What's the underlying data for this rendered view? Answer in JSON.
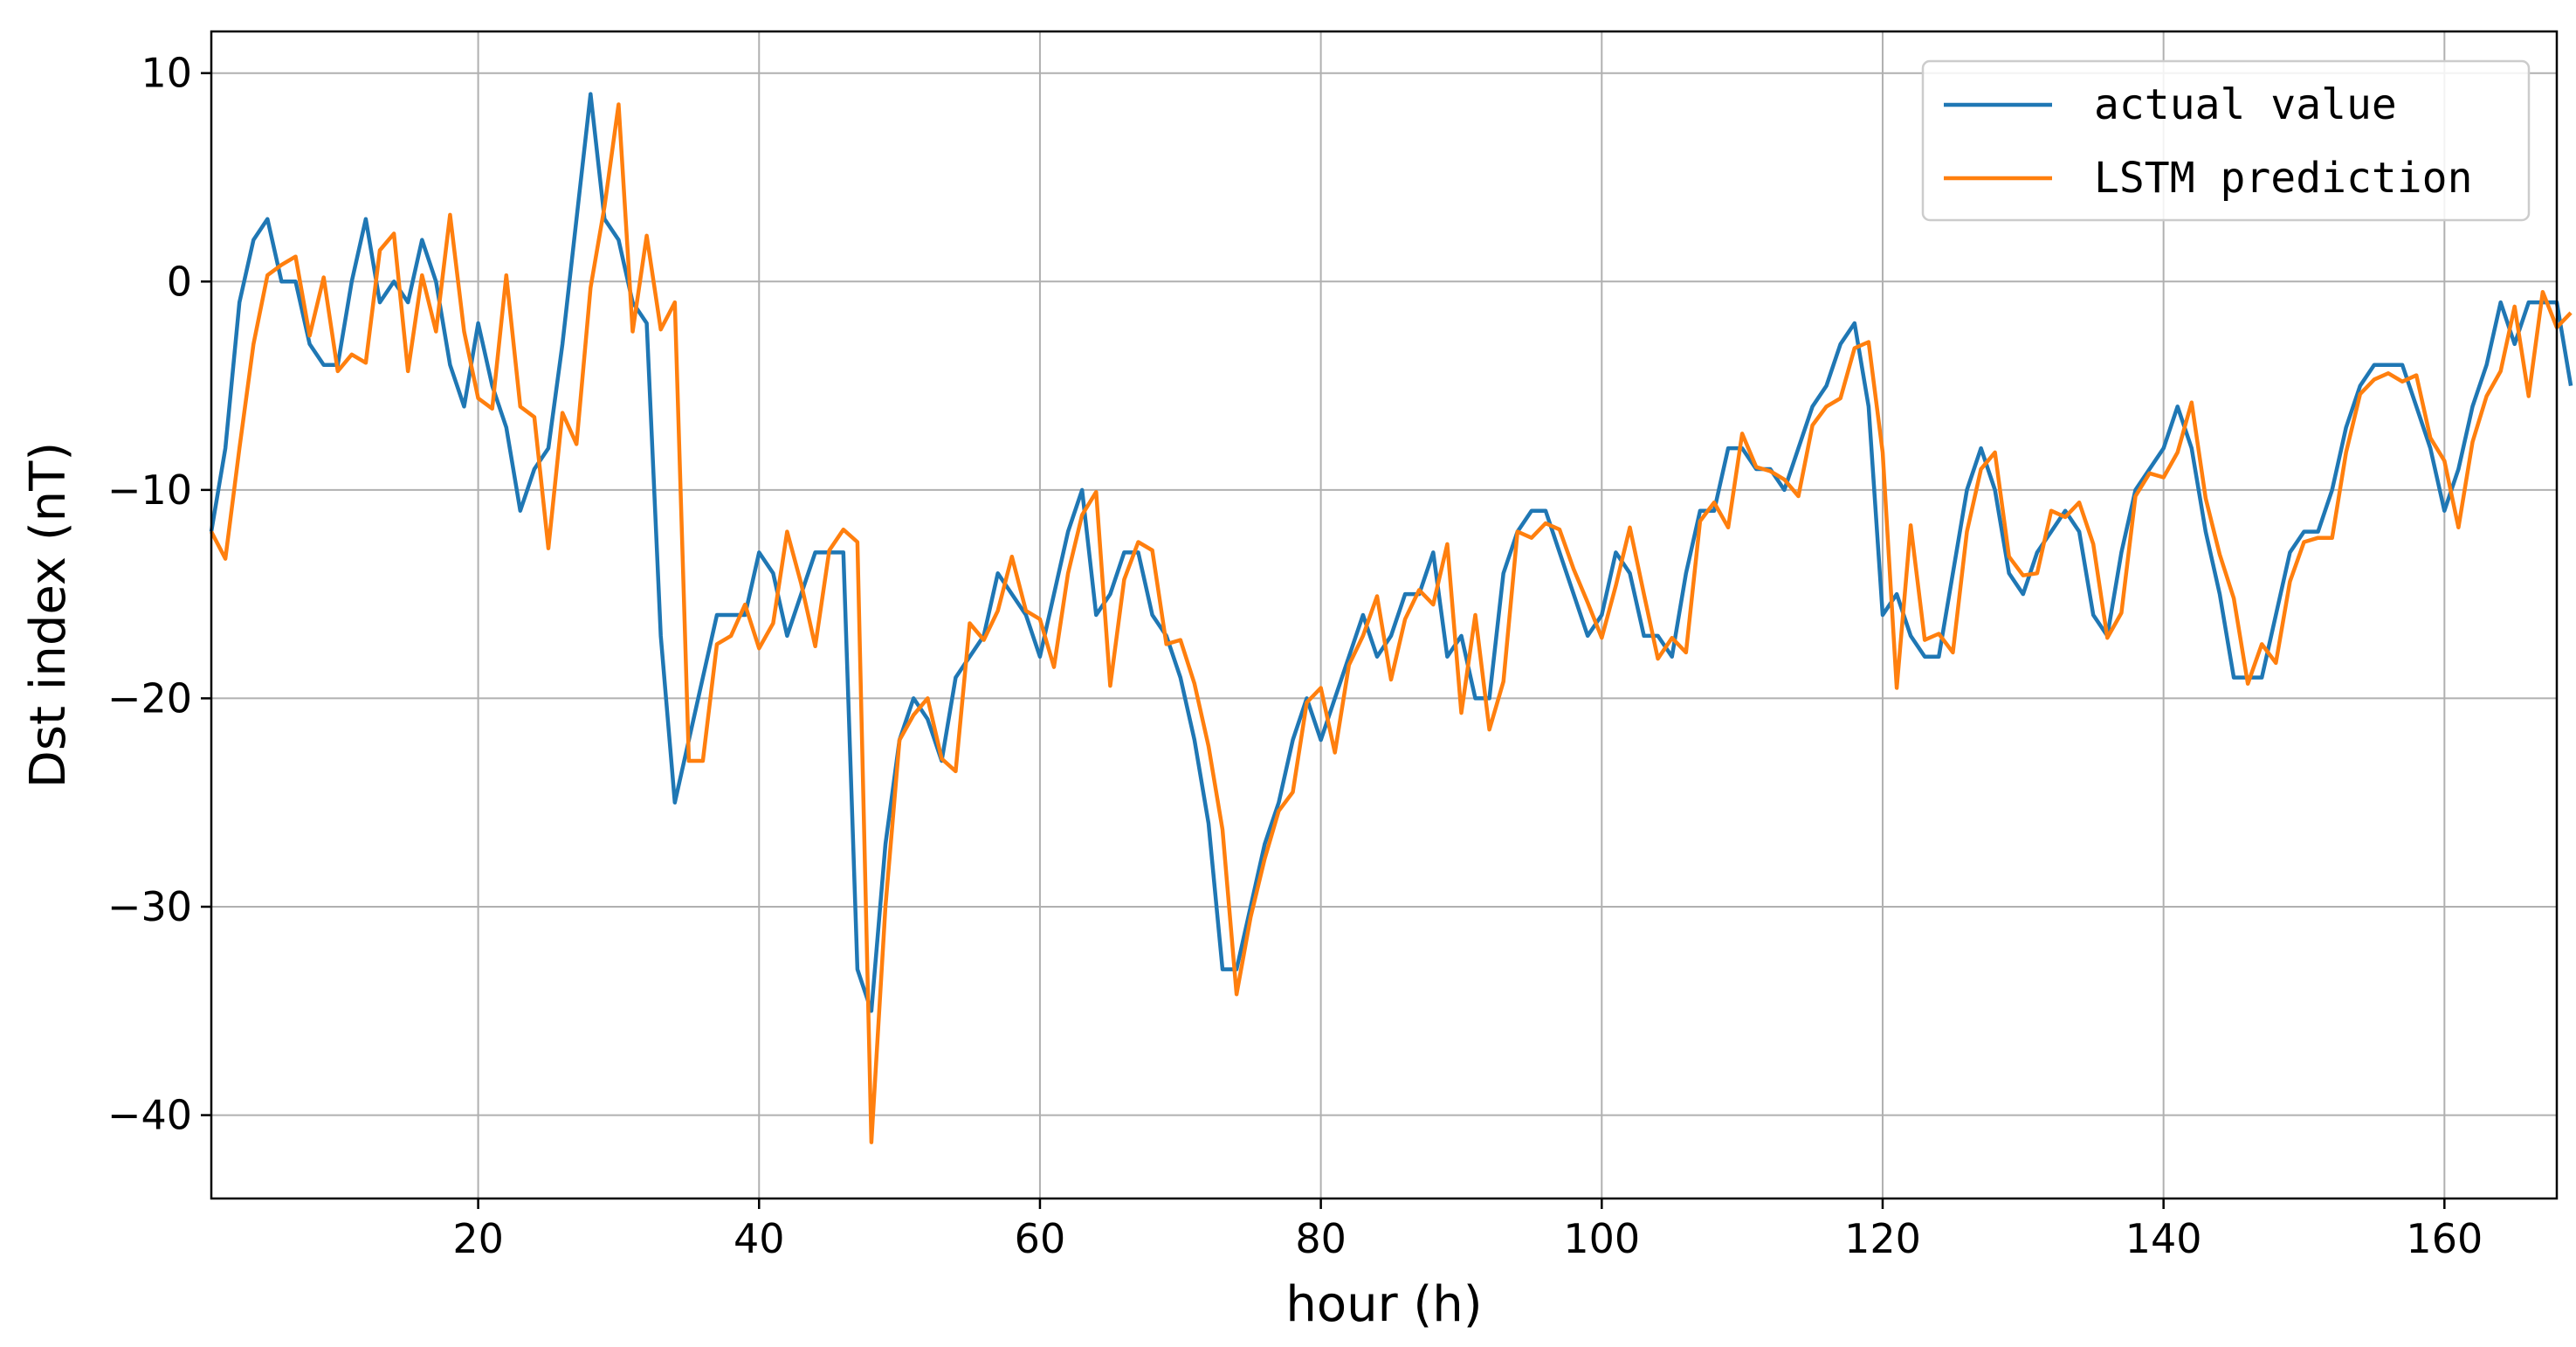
{
  "chart_data": {
    "type": "line",
    "xlabel": "hour (h)",
    "ylabel": "Dst index (nT)",
    "xlim": [
      1,
      168
    ],
    "ylim": [
      -44,
      12
    ],
    "x_ticks": [
      20,
      40,
      60,
      80,
      100,
      120,
      140,
      160
    ],
    "y_ticks": [
      10,
      0,
      -10,
      -20,
      -30,
      -40
    ],
    "y_tick_labels": [
      "10",
      "0",
      "−10",
      "−20",
      "−30",
      "−40"
    ],
    "grid": true,
    "legend_position": "top-right",
    "x_start": 1,
    "series": [
      {
        "name": "actual value",
        "color": "#1f77b4",
        "values": [
          -12,
          -8,
          -1,
          2,
          3,
          0,
          0,
          -3,
          -4,
          -4,
          0,
          3,
          -1,
          0,
          -1,
          2,
          0,
          -4,
          -6,
          -2,
          -5,
          -7,
          -11,
          -9,
          -8,
          -3,
          3,
          9,
          3,
          2,
          -1,
          -2,
          -17,
          -25,
          -22,
          -19,
          -16,
          -16,
          -16,
          -13,
          -14,
          -17,
          -15,
          -13,
          -13,
          -13,
          -33,
          -35,
          -27,
          -22,
          -20,
          -21,
          -23,
          -19,
          -18,
          -17,
          -14,
          -15,
          -16,
          -18,
          -15,
          -12,
          -10,
          -16,
          -15,
          -13,
          -13,
          -16,
          -17,
          -19,
          -22,
          -26,
          -33,
          -33,
          -30,
          -27,
          -25,
          -22,
          -20,
          -22,
          -20,
          -18,
          -16,
          -18,
          -17,
          -15,
          -15,
          -13,
          -18,
          -17,
          -20,
          -20,
          -14,
          -12,
          -11,
          -11,
          -13,
          -15,
          -17,
          -16,
          -13,
          -14,
          -17,
          -17,
          -18,
          -14,
          -11,
          -11,
          -8,
          -8,
          -9,
          -9,
          -10,
          -8,
          -6,
          -5,
          -3,
          -2,
          -6,
          -16,
          -15,
          -17,
          -18,
          -18,
          -14,
          -10,
          -8,
          -10,
          -14,
          -15,
          -13,
          -12,
          -11,
          -12,
          -16,
          -17,
          -13,
          -10,
          -9,
          -8,
          -6,
          -8,
          -12,
          -15,
          -19,
          -19,
          -19,
          -16,
          -13,
          -12,
          -12,
          -10,
          -7,
          -5,
          -4,
          -4,
          -4,
          -6,
          -8,
          -11,
          -9,
          -6,
          -4,
          -1,
          -3,
          -1,
          -1,
          -1,
          -5
        ]
      },
      {
        "name": "LSTM prediction",
        "color": "#ff7f0e",
        "values": [
          -12,
          -13.3,
          -8,
          -3,
          0.3,
          0.8,
          1.2,
          -2.6,
          0.2,
          -4.3,
          -3.5,
          -3.9,
          1.5,
          2.3,
          -4.3,
          0.3,
          -2.4,
          3.2,
          -2.4,
          -5.6,
          -6.1,
          0.3,
          -6,
          -6.5,
          -12.8,
          -6.3,
          -7.8,
          -0.3,
          3.6,
          8.5,
          -2.4,
          2.2,
          -2.3,
          -1,
          -23,
          -23,
          -17.4,
          -17,
          -15.5,
          -17.6,
          -16.4,
          -12,
          -14.5,
          -17.5,
          -12.9,
          -11.9,
          -12.5,
          -41.3,
          -30,
          -22,
          -20.8,
          -20,
          -22.9,
          -23.5,
          -16.4,
          -17.2,
          -15.8,
          -13.2,
          -15.8,
          -16.2,
          -18.5,
          -14,
          -11.2,
          -10.1,
          -19.4,
          -14.3,
          -12.5,
          -12.9,
          -17.4,
          -17.2,
          -19.3,
          -22.3,
          -26.3,
          -34.2,
          -30.5,
          -27.7,
          -25.4,
          -24.5,
          -20.2,
          -19.5,
          -22.6,
          -18.4,
          -17,
          -15.1,
          -19.1,
          -16.2,
          -14.8,
          -15.5,
          -12.6,
          -20.7,
          -16,
          -21.5,
          -19.2,
          -12,
          -12.3,
          -11.6,
          -11.9,
          -13.8,
          -15.4,
          -17.1,
          -14.6,
          -11.8,
          -15,
          -18.1,
          -17.1,
          -17.8,
          -11.5,
          -10.6,
          -11.8,
          -7.3,
          -8.9,
          -9.1,
          -9.5,
          -10.3,
          -6.9,
          -6,
          -5.6,
          -3.2,
          -2.9,
          -8.2,
          -19.5,
          -11.7,
          -17.2,
          -16.9,
          -17.8,
          -12,
          -9,
          -8.2,
          -13.2,
          -14.1,
          -14,
          -11,
          -11.3,
          -10.6,
          -12.6,
          -17.1,
          -15.9,
          -10.3,
          -9.2,
          -9.4,
          -8.2,
          -5.8,
          -10.4,
          -13.1,
          -15.2,
          -19.3,
          -17.4,
          -18.3,
          -14.4,
          -12.5,
          -12.3,
          -12.3,
          -8.2,
          -5.4,
          -4.7,
          -4.4,
          -4.8,
          -4.5,
          -7.5,
          -8.6,
          -11.8,
          -7.7,
          -5.5,
          -4.3,
          -1.2,
          -5.5,
          -0.5,
          -2.2,
          -1.5
        ]
      }
    ]
  }
}
